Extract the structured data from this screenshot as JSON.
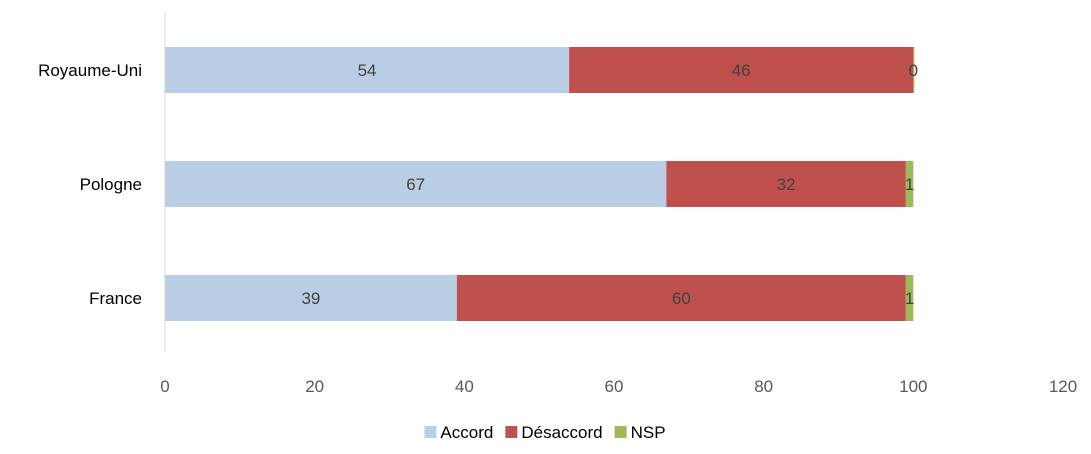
{
  "chart_data": {
    "type": "bar",
    "orientation": "horizontal",
    "stacked": true,
    "categories": [
      "Royaume-Uni",
      "Pologne",
      "France"
    ],
    "series": [
      {
        "name": "Accord",
        "values": [
          54,
          67,
          39
        ],
        "color": "#b9cde5"
      },
      {
        "name": "Désaccord",
        "values": [
          46,
          32,
          60
        ],
        "color": "#c0504d"
      },
      {
        "name": "NSP",
        "values": [
          0,
          1,
          1
        ],
        "color": "#9bbb59"
      }
    ],
    "xlim": [
      0,
      120
    ],
    "x_ticks": [
      0,
      20,
      40,
      60,
      80,
      100,
      120
    ],
    "data_labels": true,
    "grid": false,
    "legend_position": "bottom"
  }
}
